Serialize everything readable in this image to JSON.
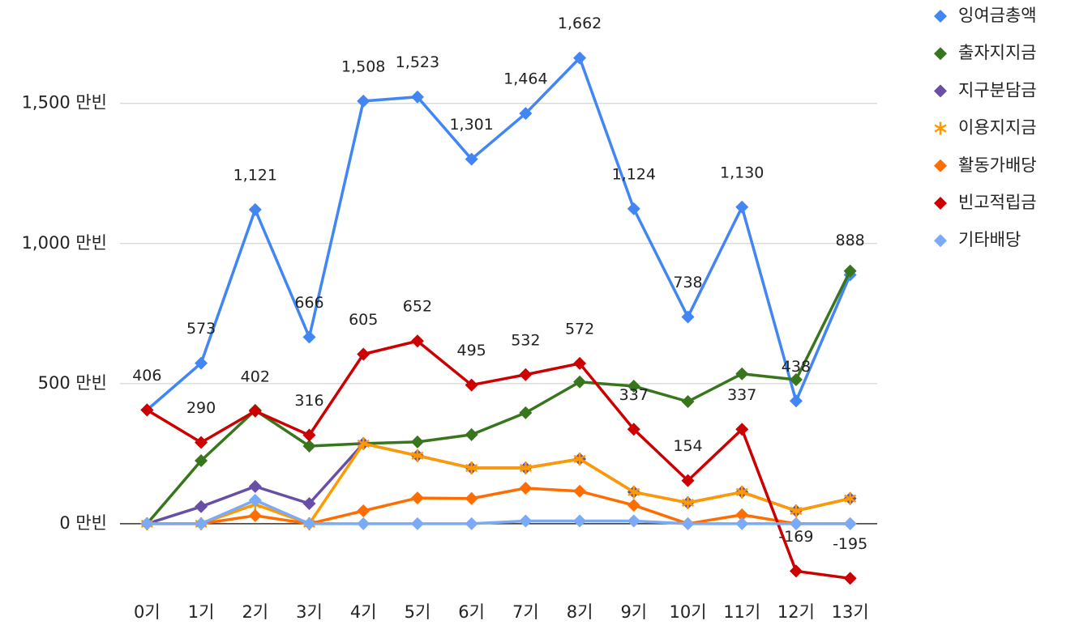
{
  "chart_data": {
    "type": "line",
    "categories": [
      "0기",
      "1기",
      "2기",
      "3기",
      "4기",
      "5기",
      "6기",
      "7기",
      "8기",
      "9기",
      "10기",
      "11기",
      "12기",
      "13기"
    ],
    "ylim": [
      -240,
      1840
    ],
    "yticks": [
      {
        "value": 0,
        "label": "0 만빈"
      },
      {
        "value": 500,
        "label": "500 만빈"
      },
      {
        "value": 1000,
        "label": "1,000 만빈"
      },
      {
        "value": 1500,
        "label": "1,500 만빈"
      }
    ],
    "grid": true,
    "legend": "right",
    "series": [
      {
        "name": "잉여금총액",
        "color": "#4285f4",
        "marker": "diamond",
        "values": [
          406,
          573,
          1121,
          666,
          1508,
          1523,
          1301,
          1464,
          1662,
          1124,
          738,
          1130,
          438,
          888
        ],
        "value_labels": [
          null,
          "573",
          "1,121",
          "666",
          "1,508",
          "1,523",
          "1,301",
          "1,464",
          "1,662",
          "1,124",
          "738",
          "1,130",
          "438",
          "888"
        ]
      },
      {
        "name": "출자지지금",
        "color": "#38761d",
        "marker": "diamond",
        "values": [
          0,
          225,
          405,
          277,
          286,
          292,
          318,
          396,
          506,
          491,
          436,
          535,
          514,
          902
        ]
      },
      {
        "name": "지구분담금",
        "color": "#674ea7",
        "marker": "diamond",
        "values": [
          0,
          61,
          133,
          72,
          286,
          243,
          199,
          199,
          231,
          113,
          75,
          113,
          46,
          90
        ]
      },
      {
        "name": "이용지지금",
        "color": "#ff9900",
        "marker": "star",
        "values": [
          0,
          0,
          69,
          0,
          286,
          243,
          199,
          199,
          231,
          113,
          75,
          113,
          46,
          90
        ]
      },
      {
        "name": "활동가배당",
        "color": "#ff6d01",
        "marker": "diamond",
        "values": [
          0,
          0,
          29,
          0,
          46,
          92,
          90,
          127,
          116,
          66,
          0,
          32,
          0,
          0
        ]
      },
      {
        "name": "빈고적립금",
        "color": "#cc0000",
        "marker": "diamond",
        "values": [
          406,
          290,
          402,
          316,
          605,
          652,
          495,
          532,
          572,
          337,
          154,
          337,
          -169,
          -195
        ],
        "value_labels": [
          "406",
          "290",
          "402",
          "316",
          "605",
          "652",
          "495",
          "532",
          "572",
          "337",
          "154",
          "337",
          "-169",
          "-195"
        ]
      },
      {
        "name": "기타배당",
        "color": "#7baaf7",
        "marker": "diamond",
        "values": [
          0,
          0,
          84,
          0,
          0,
          0,
          0,
          10,
          10,
          10,
          0,
          0,
          0,
          0
        ]
      }
    ]
  }
}
